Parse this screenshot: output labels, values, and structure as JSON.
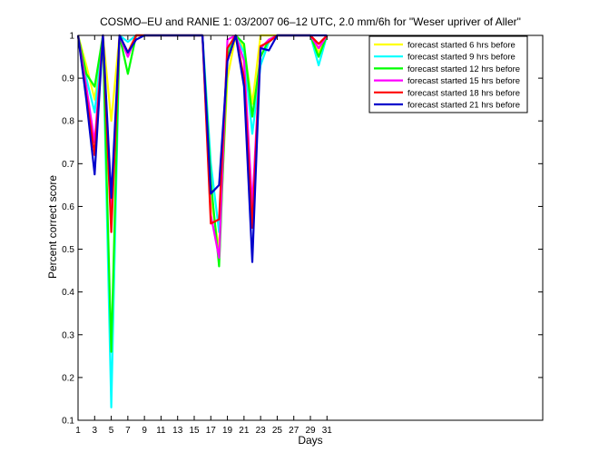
{
  "chart_data": {
    "type": "line",
    "title": "COSMO–EU and RANIE 1: 03/2007 06–12 UTC, 2.0 mm/6h for \"Weser upriver of Aller\"",
    "xlabel": "Days",
    "ylabel": "Percent correct score",
    "xlim": [
      1,
      57
    ],
    "ylim": [
      0.1,
      1
    ],
    "xticks": [
      1,
      3,
      5,
      7,
      9,
      11,
      13,
      15,
      17,
      19,
      21,
      23,
      25,
      27,
      29,
      31
    ],
    "yticks": [
      0.1,
      0.2,
      0.3,
      0.4,
      0.5,
      0.6,
      0.7,
      0.8,
      0.9,
      1
    ],
    "grid": false,
    "legend_position": "top-right",
    "x": [
      1,
      2,
      3,
      4,
      5,
      6,
      7,
      8,
      9,
      10,
      11,
      12,
      13,
      14,
      15,
      16,
      17,
      18,
      19,
      20,
      21,
      22,
      23,
      24,
      25,
      26,
      27,
      28,
      29,
      30,
      31
    ],
    "series": [
      {
        "name": "forecast started 6 hrs before",
        "color": "#ffff00",
        "values": [
          1,
          0.93,
          0.85,
          1,
          0.8,
          1,
          0.96,
          1,
          1,
          1,
          1,
          1,
          1,
          1,
          1,
          1,
          0.62,
          0.5,
          0.9,
          1,
          0.97,
          0.84,
          1,
          1,
          1,
          1,
          1,
          1,
          1,
          0.96,
          1
        ]
      },
      {
        "name": "forecast started 9 hrs before",
        "color": "#00ffff",
        "values": [
          1,
          0.9,
          0.82,
          1,
          0.13,
          1,
          0.985,
          1,
          1,
          1,
          1,
          1,
          1,
          1,
          1,
          1,
          0.7,
          0.54,
          0.96,
          1,
          0.96,
          0.77,
          0.93,
          0.985,
          1,
          1,
          1,
          1,
          1,
          0.93,
          1
        ]
      },
      {
        "name": "forecast started 12 hrs before",
        "color": "#00ff00",
        "values": [
          1,
          0.91,
          0.88,
          1,
          0.26,
          1,
          0.91,
          1,
          1,
          1,
          1,
          1,
          1,
          1,
          1,
          1,
          0.66,
          0.46,
          0.95,
          1,
          0.98,
          0.81,
          0.95,
          0.99,
          1,
          1,
          1,
          1,
          1,
          0.95,
          1
        ]
      },
      {
        "name": "forecast started 15 hrs before",
        "color": "#ff00ff",
        "values": [
          1,
          0.88,
          0.75,
          1,
          0.58,
          1,
          0.95,
          1,
          1,
          1,
          1,
          1,
          1,
          1,
          1,
          1,
          0.58,
          0.48,
          0.99,
          1,
          0.94,
          0.6,
          0.97,
          0.99,
          1,
          1,
          1,
          1,
          1,
          0.97,
          1
        ]
      },
      {
        "name": "forecast started 18 hrs before",
        "color": "#ff0000",
        "values": [
          1,
          0.86,
          0.72,
          1,
          0.54,
          1,
          0.96,
          1,
          1,
          1,
          1,
          1,
          1,
          1,
          1,
          1,
          0.56,
          0.57,
          0.97,
          1,
          0.9,
          0.55,
          0.975,
          0.985,
          1,
          1,
          1,
          1,
          1,
          0.98,
          1
        ]
      },
      {
        "name": "forecast started 21 hrs before",
        "color": "#0000cc",
        "values": [
          1,
          0.85,
          0.675,
          1,
          0.62,
          1,
          0.96,
          0.99,
          1,
          1,
          1,
          1,
          1,
          1,
          1,
          1,
          0.63,
          0.65,
          0.94,
          1,
          0.88,
          0.47,
          0.97,
          0.965,
          1,
          1,
          1,
          1,
          1,
          1,
          1
        ]
      }
    ]
  }
}
